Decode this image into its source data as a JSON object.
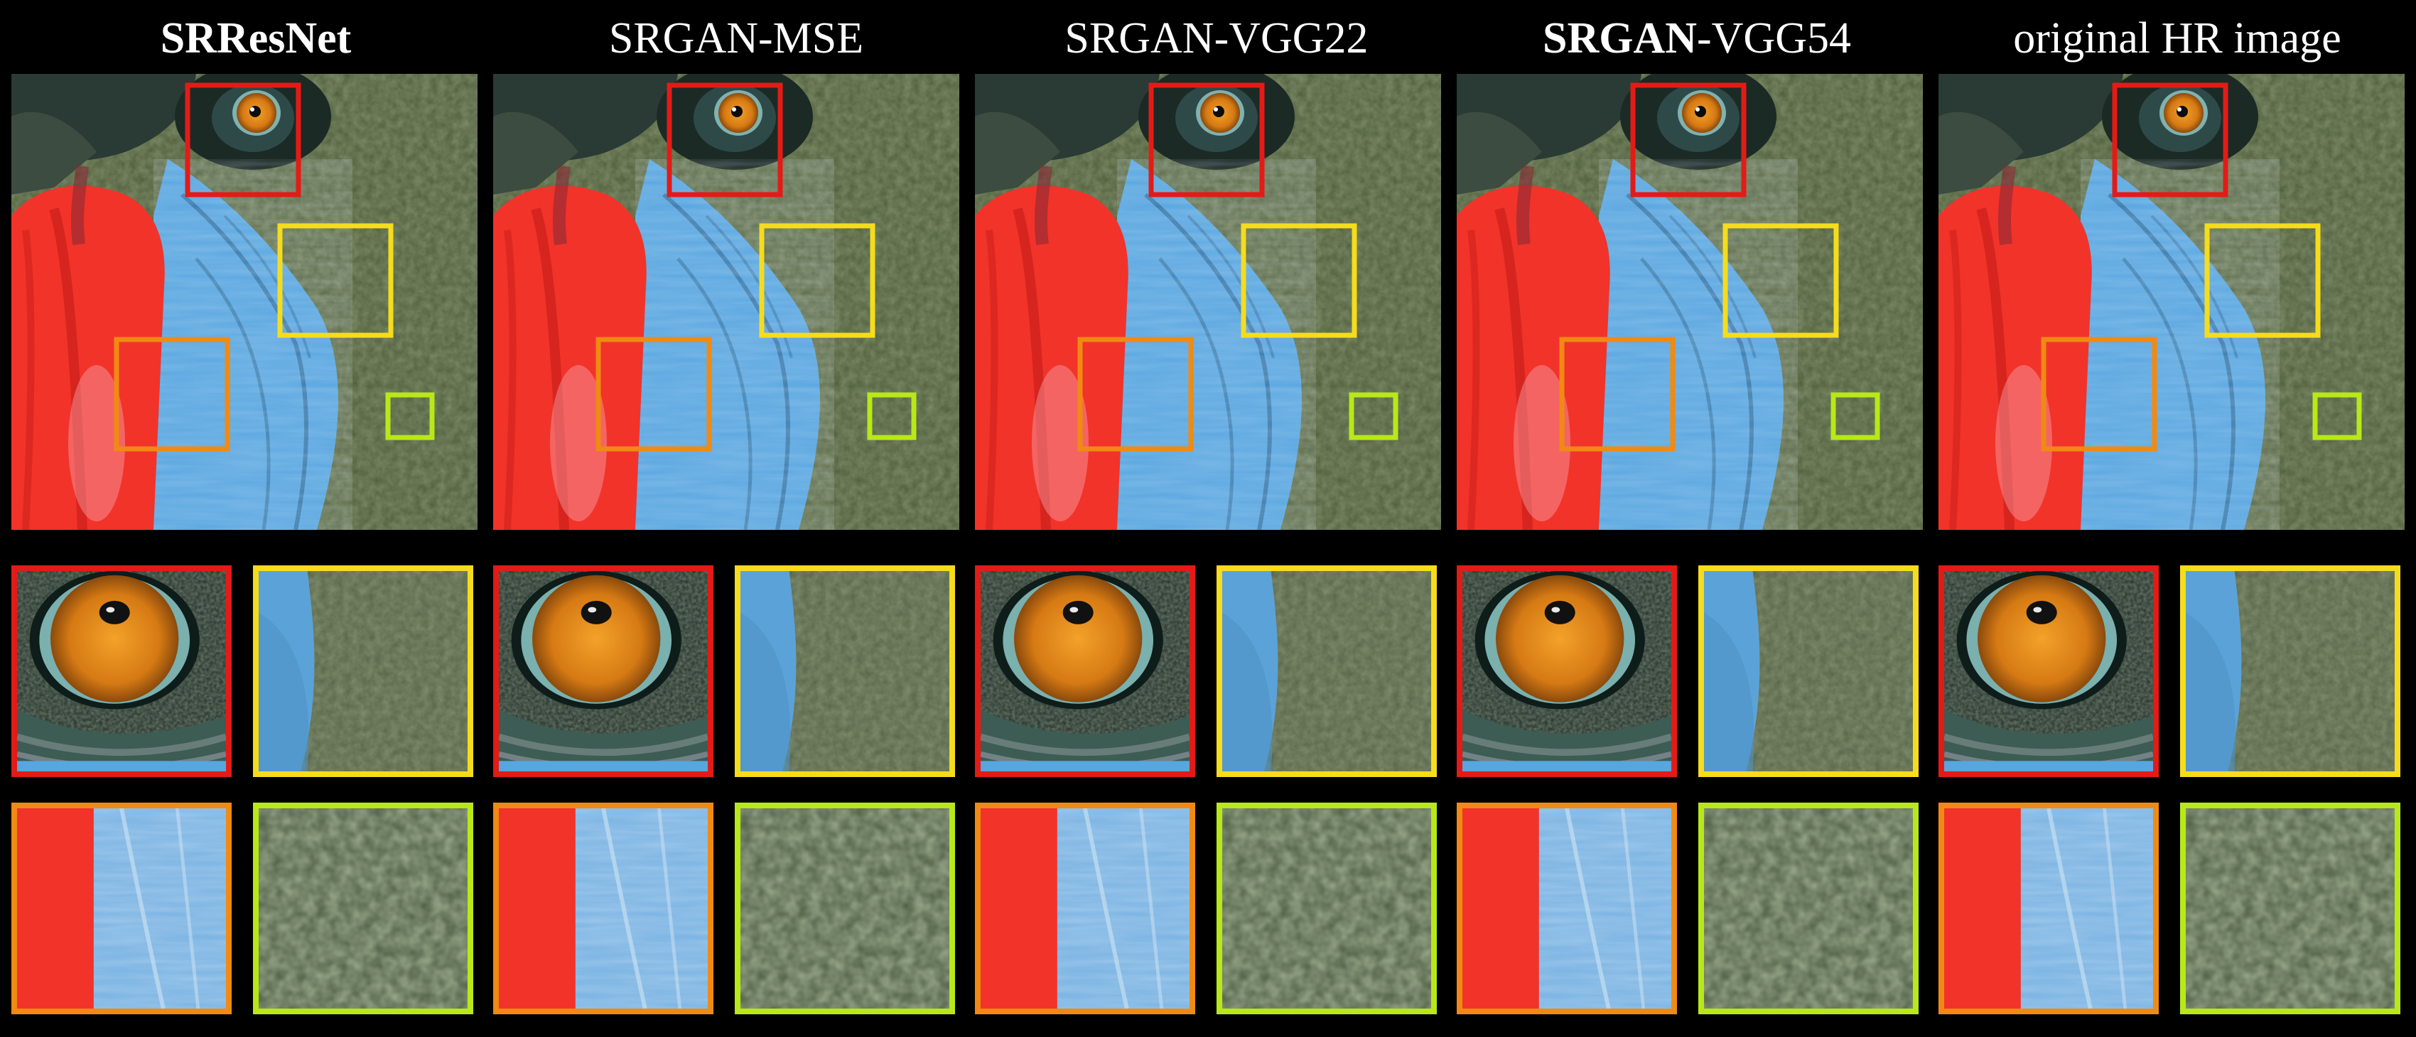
{
  "columns": [
    {
      "title_bold": "SRResNet",
      "title_rest": ""
    },
    {
      "title_bold": "",
      "title_rest": "SRGAN-MSE"
    },
    {
      "title_bold": "",
      "title_rest": "SRGAN-VGG22"
    },
    {
      "title_bold": "SRGAN",
      "title_rest": "-VGG54"
    },
    {
      "title_bold": "",
      "title_rest": "original HR image"
    }
  ],
  "figure": {
    "subject": "mandrill face super-resolution comparison",
    "crop_colors": {
      "eye": "#e31b17",
      "fur": "#f5dc1c",
      "nose_edge": "#f08a12",
      "texture": "#b8e818"
    },
    "palette": {
      "nose_red": "#f2332a",
      "cheek_blue": "#58a6e0",
      "fur_green": "#5e6e48",
      "eye_orange": "#e08a18",
      "background": "#000000"
    }
  }
}
